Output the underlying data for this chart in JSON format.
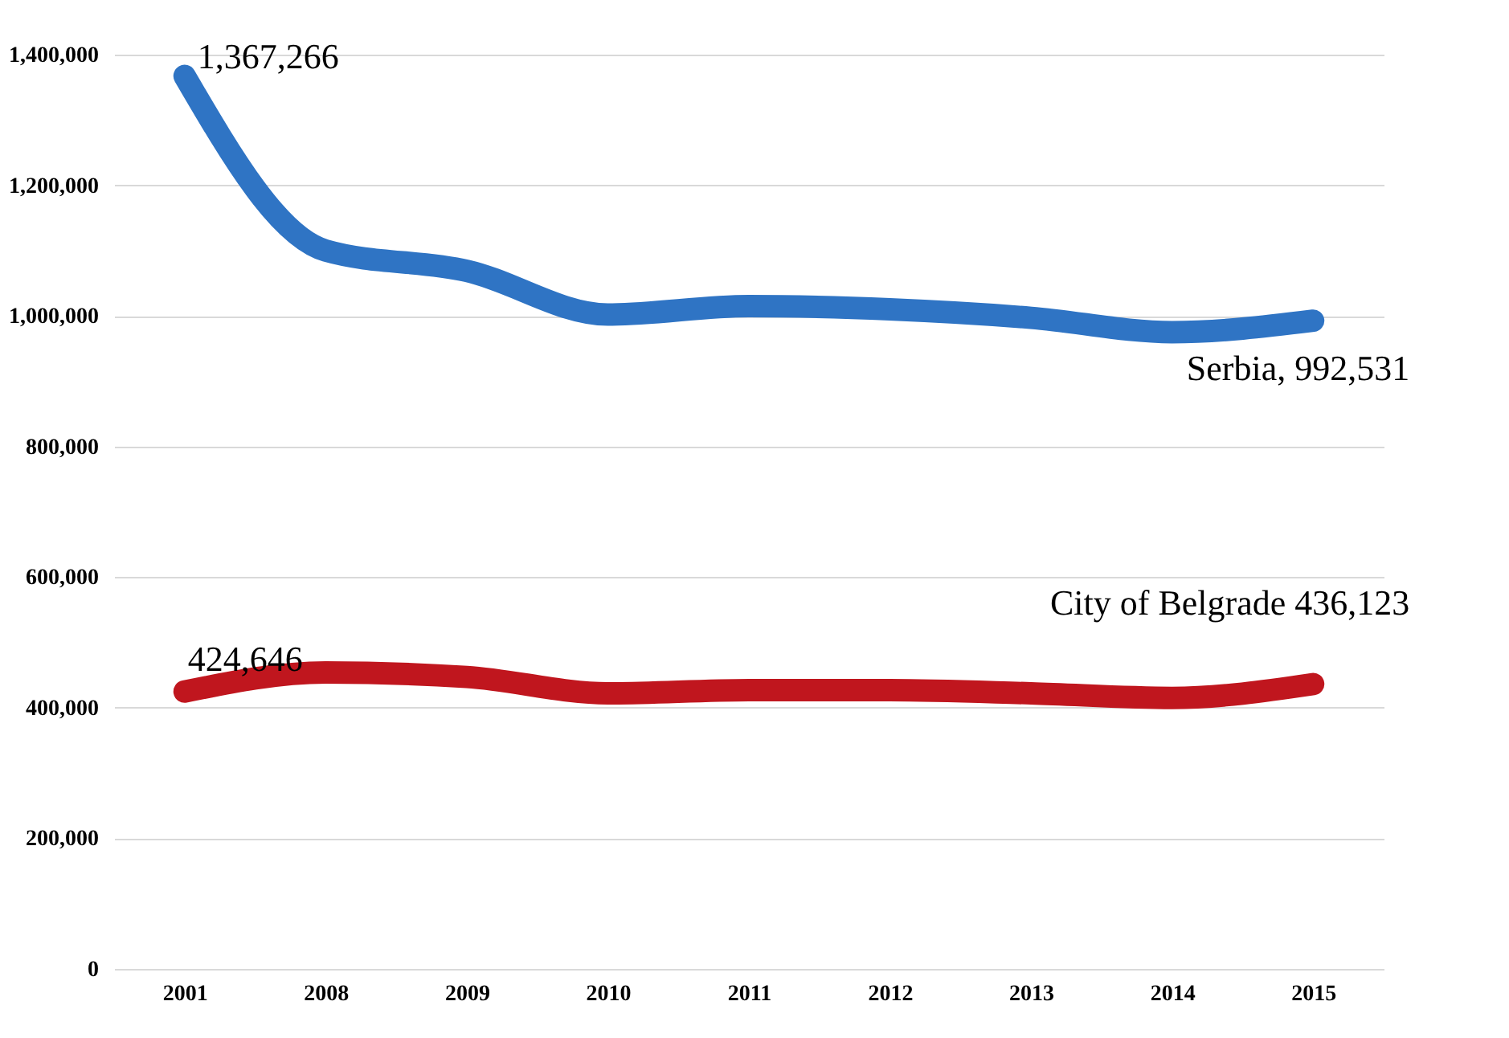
{
  "chart_data": {
    "type": "line",
    "categories": [
      "2001",
      "2008",
      "2009",
      "2010",
      "2011",
      "2012",
      "2013",
      "2014",
      "2015"
    ],
    "series": [
      {
        "color": "#2f74c4",
        "values": [
          1367266,
          1100000,
          1069000,
          1002000,
          1015000,
          1010000,
          997000,
          975000,
          992531
        ]
      },
      {
        "color": "#c0161e",
        "values": [
          424646,
          454000,
          447000,
          422000,
          427000,
          427000,
          422000,
          415000,
          436123
        ]
      }
    ],
    "ylim": [
      0,
      1400000
    ],
    "yticks": [
      {
        "value": 0,
        "label": "0"
      },
      {
        "value": 200000,
        "label": "200,000"
      },
      {
        "value": 400000,
        "label": "400,000"
      },
      {
        "value": 600000,
        "label": "600,000"
      },
      {
        "value": 800000,
        "label": "800,000"
      },
      {
        "value": 1000000,
        "label": "1,000,000"
      },
      {
        "value": 1200000,
        "label": "1,200,000"
      },
      {
        "value": 1400000,
        "label": "1,400,000"
      }
    ],
    "grid": "y",
    "line_style": "solid",
    "annotations": [
      {
        "text": "1,367,266",
        "x": "2001",
        "y": 1367266
      },
      {
        "text": "Serbia, 992,531",
        "x": "2015",
        "y": 992531
      },
      {
        "text": "424,646",
        "x": "2001",
        "y": 424646
      },
      {
        "text": "City of Belgrade 436,123",
        "x": "2015",
        "y": 436123
      }
    ]
  }
}
